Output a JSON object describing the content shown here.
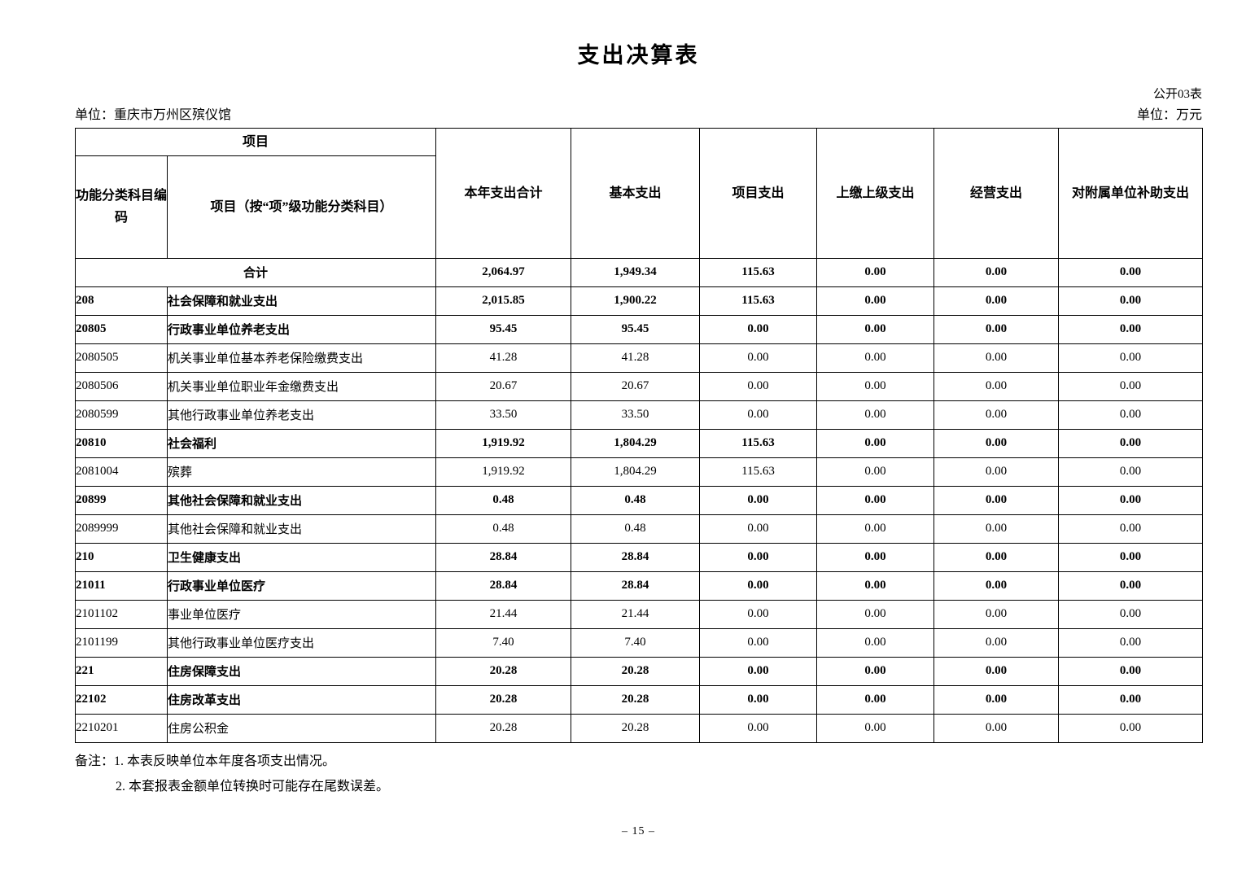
{
  "page": {
    "title": "支出决算表",
    "table_code": "公开03表",
    "unit_label": "单位：重庆市万州区殡仪馆",
    "currency_label": "单位：万元",
    "page_number": "– 15 –"
  },
  "table": {
    "header": {
      "project_group": "项目",
      "code_label": "功能分类科目编码",
      "item_label": "项目（按“项”级功能分类科目）",
      "columns": [
        "本年支出合计",
        "基本支出",
        "项目支出",
        "上缴上级支出",
        "经营支出",
        "对附属单位补助支出"
      ]
    },
    "rows": [
      {
        "code": "",
        "name": "合计",
        "merged": true,
        "bold": true,
        "values": [
          "2,064.97",
          "1,949.34",
          "115.63",
          "0.00",
          "0.00",
          "0.00"
        ]
      },
      {
        "code": "208",
        "name": "社会保障和就业支出",
        "bold": true,
        "values": [
          "2,015.85",
          "1,900.22",
          "115.63",
          "0.00",
          "0.00",
          "0.00"
        ]
      },
      {
        "code": "20805",
        "name": "行政事业单位养老支出",
        "bold": true,
        "values": [
          "95.45",
          "95.45",
          "0.00",
          "0.00",
          "0.00",
          "0.00"
        ]
      },
      {
        "code": "2080505",
        "name": "机关事业单位基本养老保险缴费支出",
        "bold": false,
        "values": [
          "41.28",
          "41.28",
          "0.00",
          "0.00",
          "0.00",
          "0.00"
        ]
      },
      {
        "code": "2080506",
        "name": "机关事业单位职业年金缴费支出",
        "bold": false,
        "values": [
          "20.67",
          "20.67",
          "0.00",
          "0.00",
          "0.00",
          "0.00"
        ]
      },
      {
        "code": "2080599",
        "name": "其他行政事业单位养老支出",
        "bold": false,
        "values": [
          "33.50",
          "33.50",
          "0.00",
          "0.00",
          "0.00",
          "0.00"
        ]
      },
      {
        "code": "20810",
        "name": "社会福利",
        "bold": true,
        "values": [
          "1,919.92",
          "1,804.29",
          "115.63",
          "0.00",
          "0.00",
          "0.00"
        ]
      },
      {
        "code": "2081004",
        "name": "殡葬",
        "bold": false,
        "values": [
          "1,919.92",
          "1,804.29",
          "115.63",
          "0.00",
          "0.00",
          "0.00"
        ]
      },
      {
        "code": "20899",
        "name": "其他社会保障和就业支出",
        "bold": true,
        "values": [
          "0.48",
          "0.48",
          "0.00",
          "0.00",
          "0.00",
          "0.00"
        ]
      },
      {
        "code": "2089999",
        "name": "其他社会保障和就业支出",
        "bold": false,
        "values": [
          "0.48",
          "0.48",
          "0.00",
          "0.00",
          "0.00",
          "0.00"
        ]
      },
      {
        "code": "210",
        "name": "卫生健康支出",
        "bold": true,
        "values": [
          "28.84",
          "28.84",
          "0.00",
          "0.00",
          "0.00",
          "0.00"
        ]
      },
      {
        "code": "21011",
        "name": "行政事业单位医疗",
        "bold": true,
        "values": [
          "28.84",
          "28.84",
          "0.00",
          "0.00",
          "0.00",
          "0.00"
        ]
      },
      {
        "code": "2101102",
        "name": "事业单位医疗",
        "bold": false,
        "values": [
          "21.44",
          "21.44",
          "0.00",
          "0.00",
          "0.00",
          "0.00"
        ]
      },
      {
        "code": "2101199",
        "name": "其他行政事业单位医疗支出",
        "bold": false,
        "values": [
          "7.40",
          "7.40",
          "0.00",
          "0.00",
          "0.00",
          "0.00"
        ]
      },
      {
        "code": "221",
        "name": "住房保障支出",
        "bold": true,
        "values": [
          "20.28",
          "20.28",
          "0.00",
          "0.00",
          "0.00",
          "0.00"
        ]
      },
      {
        "code": "22102",
        "name": "住房改革支出",
        "bold": true,
        "values": [
          "20.28",
          "20.28",
          "0.00",
          "0.00",
          "0.00",
          "0.00"
        ]
      },
      {
        "code": "2210201",
        "name": "住房公积金",
        "bold": false,
        "values": [
          "20.28",
          "20.28",
          "0.00",
          "0.00",
          "0.00",
          "0.00"
        ]
      }
    ]
  },
  "notes": [
    "备注：1. 本表反映单位本年度各项支出情况。",
    "2. 本套报表金额单位转换时可能存在尾数误差。"
  ]
}
